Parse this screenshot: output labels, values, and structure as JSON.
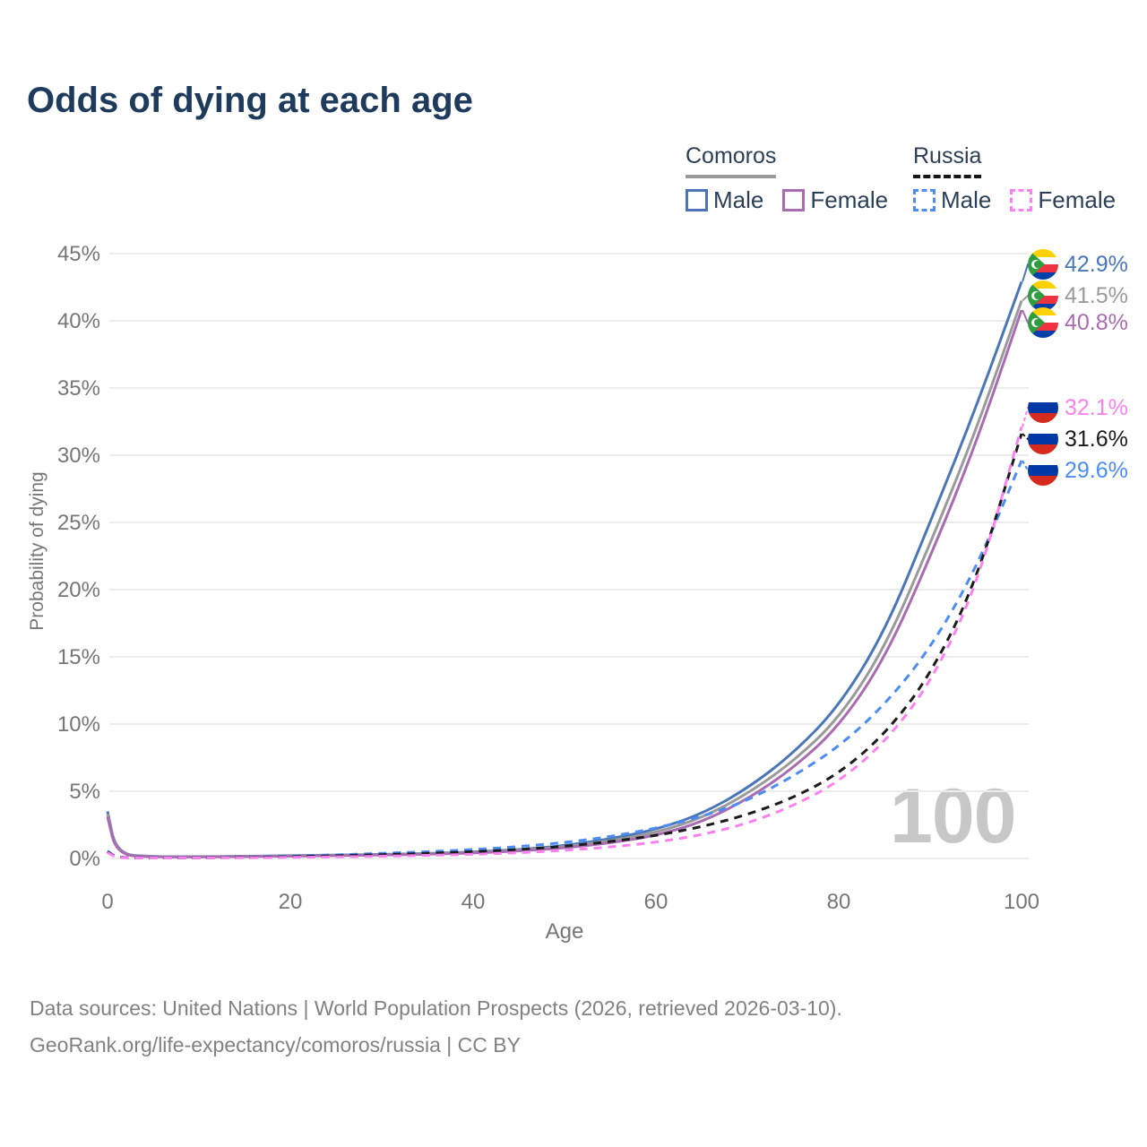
{
  "title": "Odds of dying at each age",
  "colors": {
    "title": "#1e3a5c",
    "legend_text": "#2b3f57",
    "axis_text": "#767676",
    "grid": "#ececec",
    "watermark": "#c7c7c7",
    "footer_text": "#818181",
    "comoros_male": "#4a76b8",
    "comoros_both": "#9a9a9a",
    "comoros_female": "#aa6cb0",
    "russia_male": "#4d8cf5",
    "russia_both": "#1b1b1b",
    "russia_female": "#fb80f0"
  },
  "legend": {
    "comoros": {
      "label": "Comoros",
      "male": "Male",
      "female": "Female"
    },
    "russia": {
      "label": "Russia",
      "male": "Male",
      "female": "Female"
    }
  },
  "chart_data": {
    "type": "line",
    "title": "Odds of dying at each age",
    "xlabel": "Age",
    "ylabel": "Probability of dying",
    "xlim": [
      0,
      100
    ],
    "ylim": [
      0,
      45
    ],
    "grid": "horizontal",
    "x_ticks": [
      "0",
      "20",
      "40",
      "60",
      "80",
      "100"
    ],
    "y_ticks": [
      "0%",
      "5%",
      "10%",
      "15%",
      "20%",
      "25%",
      "30%",
      "35%",
      "40%",
      "45%"
    ],
    "watermark": "100",
    "series": [
      {
        "id": "comoros-male",
        "country": "Comoros",
        "sex": "Male",
        "color": "#4a76b8",
        "dash": false,
        "points": [
          [
            0,
            3.5
          ],
          [
            1,
            0.3
          ],
          [
            5,
            0.13
          ],
          [
            10,
            0.13
          ],
          [
            15,
            0.16
          ],
          [
            20,
            0.21
          ],
          [
            25,
            0.25
          ],
          [
            30,
            0.3
          ],
          [
            35,
            0.37
          ],
          [
            40,
            0.48
          ],
          [
            45,
            0.65
          ],
          [
            50,
            0.95
          ],
          [
            55,
            1.45
          ],
          [
            60,
            2.15
          ],
          [
            65,
            3.3
          ],
          [
            70,
            5.2
          ],
          [
            75,
            7.8
          ],
          [
            80,
            11.3
          ],
          [
            85,
            16.8
          ],
          [
            90,
            25.0
          ],
          [
            95,
            33.5
          ],
          [
            100,
            42.9
          ]
        ]
      },
      {
        "id": "comoros-both",
        "country": "Comoros",
        "sex": "Both",
        "color": "#9a9a9a",
        "dash": false,
        "points": [
          [
            0,
            3.3
          ],
          [
            1,
            0.28
          ],
          [
            5,
            0.12
          ],
          [
            10,
            0.12
          ],
          [
            15,
            0.15
          ],
          [
            20,
            0.19
          ],
          [
            25,
            0.23
          ],
          [
            30,
            0.27
          ],
          [
            35,
            0.34
          ],
          [
            40,
            0.44
          ],
          [
            45,
            0.6
          ],
          [
            50,
            0.86
          ],
          [
            55,
            1.3
          ],
          [
            60,
            1.92
          ],
          [
            65,
            3.0
          ],
          [
            70,
            4.8
          ],
          [
            75,
            7.2
          ],
          [
            80,
            10.4
          ],
          [
            85,
            15.6
          ],
          [
            90,
            23.4
          ],
          [
            95,
            31.8
          ],
          [
            100,
            41.5
          ]
        ]
      },
      {
        "id": "comoros-female",
        "country": "Comoros",
        "sex": "Female",
        "color": "#aa6cb0",
        "dash": false,
        "points": [
          [
            0,
            3.1
          ],
          [
            1,
            0.26
          ],
          [
            5,
            0.11
          ],
          [
            10,
            0.11
          ],
          [
            15,
            0.14
          ],
          [
            20,
            0.18
          ],
          [
            25,
            0.21
          ],
          [
            30,
            0.25
          ],
          [
            35,
            0.31
          ],
          [
            40,
            0.4
          ],
          [
            45,
            0.55
          ],
          [
            50,
            0.78
          ],
          [
            55,
            1.15
          ],
          [
            60,
            1.7
          ],
          [
            65,
            2.7
          ],
          [
            70,
            4.4
          ],
          [
            75,
            6.7
          ],
          [
            80,
            9.8
          ],
          [
            85,
            14.8
          ],
          [
            90,
            22.4
          ],
          [
            95,
            30.8
          ],
          [
            100,
            40.8
          ]
        ]
      },
      {
        "id": "russia-male",
        "country": "Russia",
        "sex": "Male",
        "color": "#4d8cf5",
        "dash": true,
        "points": [
          [
            0,
            0.55
          ],
          [
            1,
            0.05
          ],
          [
            5,
            0.045
          ],
          [
            10,
            0.05
          ],
          [
            15,
            0.1
          ],
          [
            20,
            0.17
          ],
          [
            25,
            0.27
          ],
          [
            30,
            0.38
          ],
          [
            35,
            0.5
          ],
          [
            40,
            0.66
          ],
          [
            45,
            0.88
          ],
          [
            50,
            1.18
          ],
          [
            55,
            1.62
          ],
          [
            60,
            2.25
          ],
          [
            65,
            3.1
          ],
          [
            70,
            4.3
          ],
          [
            75,
            6.1
          ],
          [
            80,
            8.3
          ],
          [
            85,
            11.4
          ],
          [
            90,
            15.6
          ],
          [
            95,
            21.5
          ],
          [
            100,
            29.6
          ]
        ]
      },
      {
        "id": "russia-both",
        "country": "Russia",
        "sex": "Both",
        "color": "#1b1b1b",
        "dash": true,
        "points": [
          [
            0,
            0.5
          ],
          [
            1,
            0.045
          ],
          [
            5,
            0.04
          ],
          [
            10,
            0.045
          ],
          [
            15,
            0.08
          ],
          [
            20,
            0.13
          ],
          [
            25,
            0.2
          ],
          [
            30,
            0.28
          ],
          [
            35,
            0.38
          ],
          [
            40,
            0.5
          ],
          [
            45,
            0.66
          ],
          [
            50,
            0.9
          ],
          [
            55,
            1.25
          ],
          [
            60,
            1.7
          ],
          [
            65,
            2.35
          ],
          [
            70,
            3.25
          ],
          [
            75,
            4.5
          ],
          [
            80,
            6.3
          ],
          [
            85,
            9.2
          ],
          [
            90,
            13.6
          ],
          [
            95,
            20.5
          ],
          [
            100,
            31.6
          ]
        ]
      },
      {
        "id": "russia-female",
        "country": "Russia",
        "sex": "Female",
        "color": "#fb80f0",
        "dash": true,
        "points": [
          [
            0,
            0.45
          ],
          [
            1,
            0.04
          ],
          [
            5,
            0.035
          ],
          [
            10,
            0.04
          ],
          [
            15,
            0.055
          ],
          [
            20,
            0.08
          ],
          [
            25,
            0.12
          ],
          [
            30,
            0.17
          ],
          [
            35,
            0.23
          ],
          [
            40,
            0.31
          ],
          [
            45,
            0.42
          ],
          [
            50,
            0.6
          ],
          [
            55,
            0.85
          ],
          [
            60,
            1.2
          ],
          [
            65,
            1.75
          ],
          [
            70,
            2.6
          ],
          [
            75,
            3.9
          ],
          [
            80,
            5.7
          ],
          [
            85,
            8.6
          ],
          [
            90,
            13.0
          ],
          [
            95,
            20.0
          ],
          [
            100,
            32.1
          ]
        ]
      }
    ],
    "end_labels": [
      {
        "value": "42.9%",
        "flag": "comoros",
        "color": "#4a76b8"
      },
      {
        "value": "41.5%",
        "flag": "comoros",
        "color": "#9a9a9a"
      },
      {
        "value": "40.8%",
        "flag": "comoros",
        "color": "#aa6cb0"
      },
      {
        "value": "32.1%",
        "flag": "russia",
        "color": "#fb80f0"
      },
      {
        "value": "31.6%",
        "flag": "russia",
        "color": "#1b1b1b"
      },
      {
        "value": "29.6%",
        "flag": "russia",
        "color": "#4d8cf5"
      }
    ]
  },
  "footer": {
    "line1": "Data sources: United Nations | World Population Prospects (2026, retrieved 2026-03-10).",
    "line2": "GeoRank.org/life-expectancy/comoros/russia | CC BY"
  }
}
